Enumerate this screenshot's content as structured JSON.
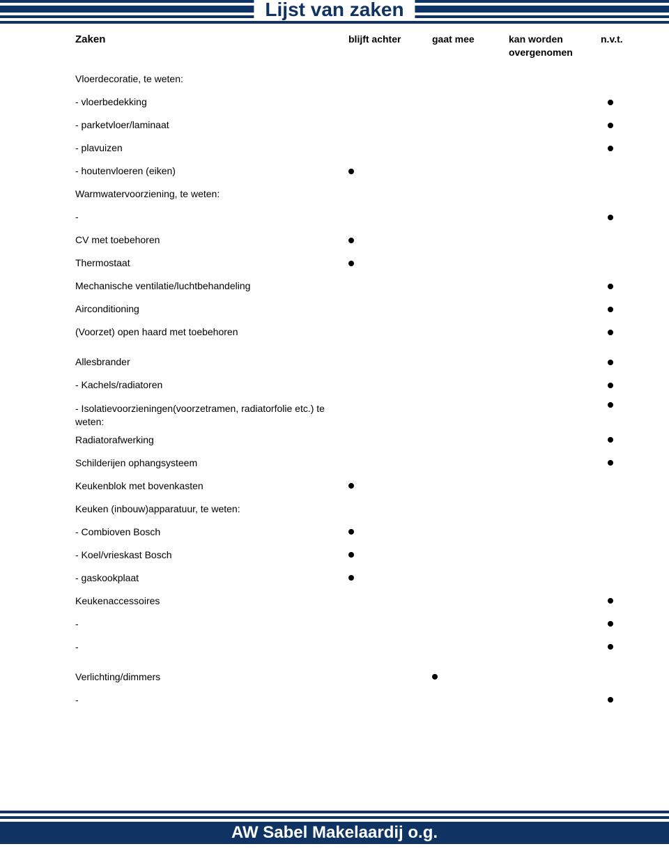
{
  "title": "Lijst van zaken",
  "header": {
    "label": "Zaken",
    "col1": "blijft achter",
    "col2": "gaat mee",
    "col3": "kan worden",
    "col3_sub": "overgenomen",
    "col4": "n.v.t."
  },
  "rows": [
    {
      "label": "Vloerdecoratie, te weten:",
      "mark": null
    },
    {
      "label": "- vloerbedekking",
      "mark": "c4"
    },
    {
      "label": "- parketvloer/laminaat",
      "mark": "c4"
    },
    {
      "label": "- plavuizen",
      "mark": "c4"
    },
    {
      "label": "- houtenvloeren (eiken)",
      "mark": "c1"
    },
    {
      "label": "Warmwatervoorziening, te weten:",
      "mark": null
    },
    {
      "label": "-",
      "mark": "c4"
    },
    {
      "label": "CV met toebehoren",
      "mark": "c1"
    },
    {
      "label": "Thermostaat",
      "mark": "c1"
    },
    {
      "label": "Mechanische ventilatie/luchtbehandeling",
      "mark": "c4"
    },
    {
      "label": "Airconditioning",
      "mark": "c4"
    },
    {
      "label": "(Voorzet) open haard met toebehoren",
      "mark": "c4"
    },
    {
      "label": "Allesbrander",
      "mark": "c4",
      "extraTop": 10
    },
    {
      "label": "- Kachels/radiatoren",
      "mark": "c4"
    },
    {
      "label": "- Isolatievoorzieningen(voorzetramen, radiatorfolie etc.) te weten:",
      "mark": "c4",
      "multi": true,
      "extraTop": 8
    },
    {
      "label": "Radiatorafwerking",
      "mark": "c4"
    },
    {
      "label": "Schilderijen ophangsysteem",
      "mark": "c4"
    },
    {
      "label": "Keukenblok met bovenkasten",
      "mark": "c1"
    },
    {
      "label": "Keuken (inbouw)apparatuur, te weten:",
      "mark": null
    },
    {
      "label": "- Combioven Bosch",
      "mark": "c1"
    },
    {
      "label": "- Koel/vrieskast Bosch",
      "mark": "c1"
    },
    {
      "label": "- gaskookplaat",
      "mark": "c1"
    },
    {
      "label": "Keukenaccessoires",
      "mark": "c4"
    },
    {
      "label": "-",
      "mark": "c4"
    },
    {
      "label": "-",
      "mark": "c4"
    },
    {
      "label": "Verlichting/dimmers",
      "mark": "c2",
      "extraTop": 10
    },
    {
      "label": "-",
      "mark": "c4"
    }
  ],
  "footer": "AW Sabel Makelaardij o.g.",
  "colors": {
    "brand": "#0f3463",
    "dot": "#000000",
    "bg": "#ffffff"
  }
}
